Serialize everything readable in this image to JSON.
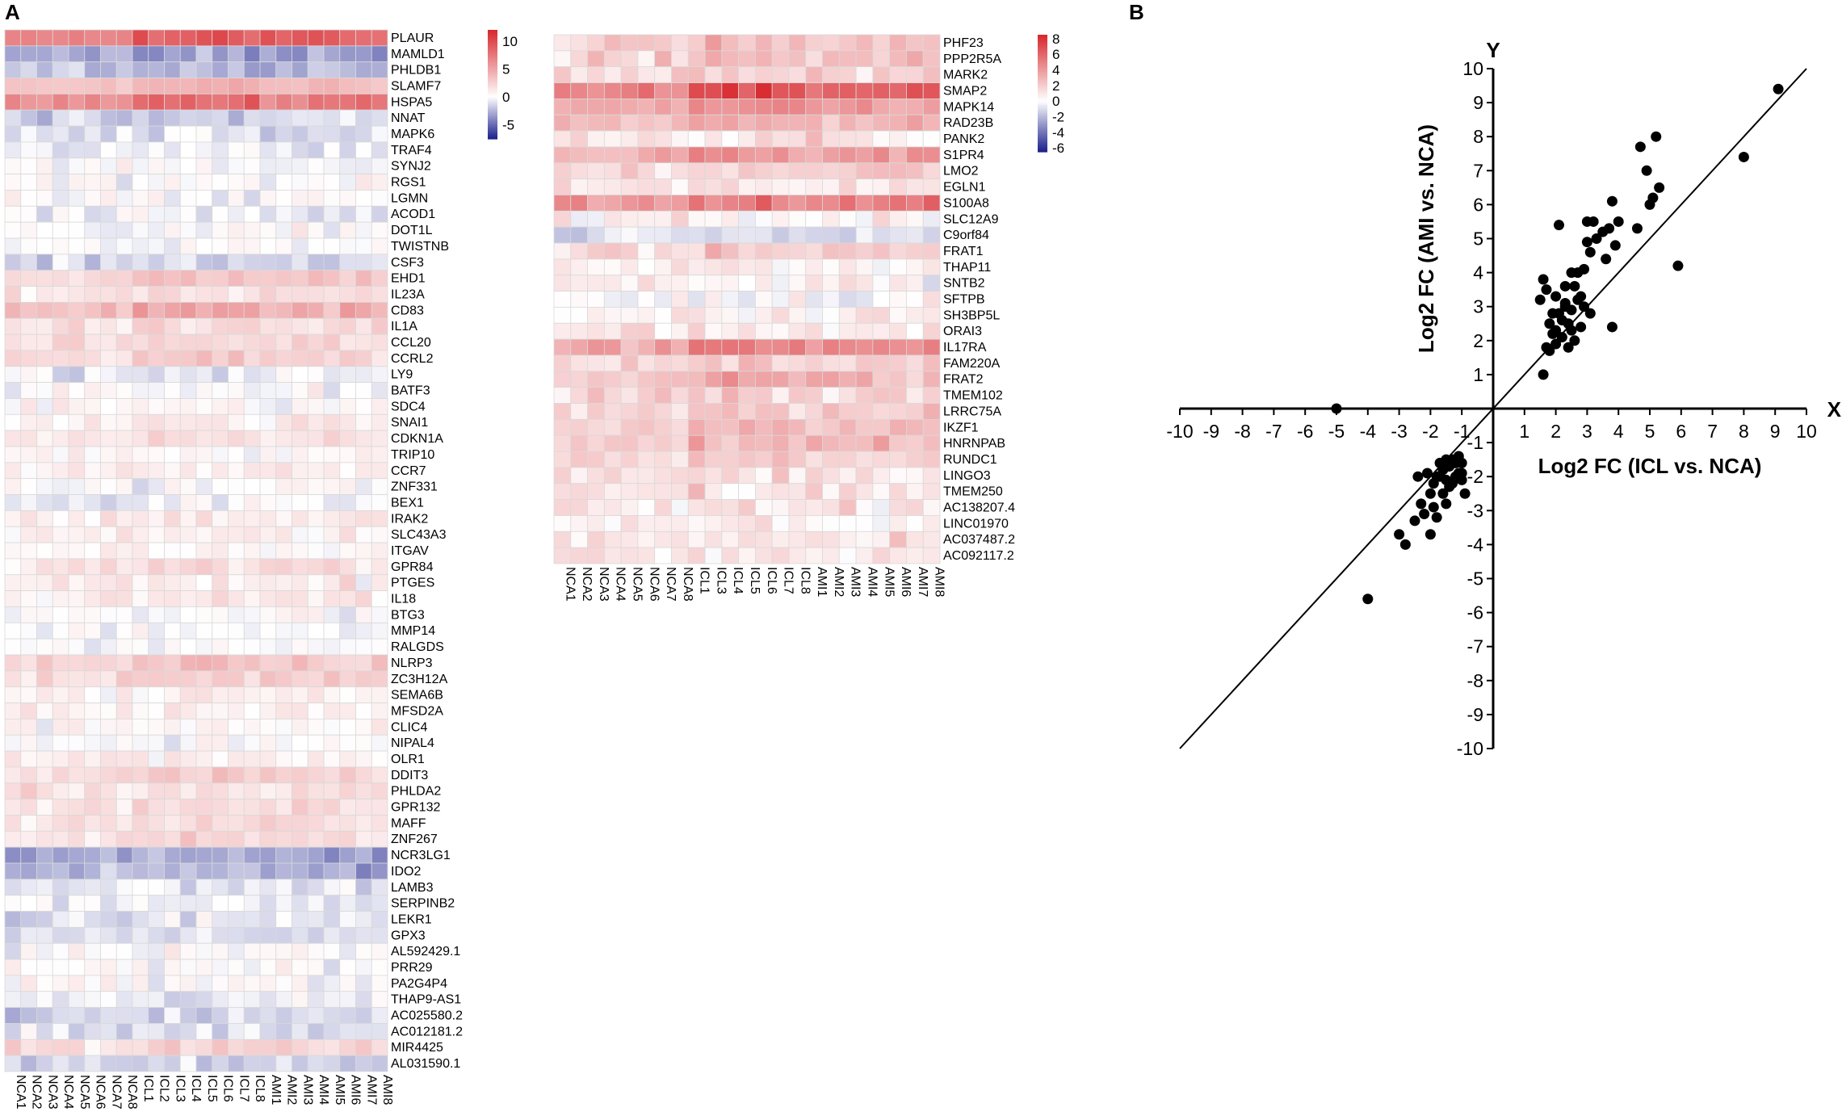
{
  "panels": {
    "a_label": "A",
    "b_label": "B"
  },
  "colors": {
    "low": "#1b1f8c",
    "mid": "#ffffff",
    "high": "#d7262b",
    "grid": "#d9d9d9",
    "text": "#000000"
  },
  "chart_data": [
    {
      "type": "heatmap",
      "title": "",
      "columns": [
        "NCA1",
        "NCA2",
        "NCA3",
        "NCA4",
        "NCA5",
        "NCA6",
        "NCA7",
        "NCA8",
        "ICL1",
        "ICL2",
        "ICL3",
        "ICL4",
        "ICL5",
        "ICL6",
        "ICL7",
        "ICL8",
        "AMI1",
        "AMI2",
        "AMI3",
        "AMI4",
        "AMI5",
        "AMI6",
        "AMI7",
        "AMI8"
      ],
      "rows": [
        "PLAUR",
        "MAMLD1",
        "PHLDB1",
        "SLAMF7",
        "HSPA5",
        "NNAT",
        "MAPK6",
        "TRAF4",
        "SYNJ2",
        "RGS1",
        "LGMN",
        "ACOD1",
        "DOT1L",
        "TWISTNB",
        "CSF3",
        "EHD1",
        "IL23A",
        "CD83",
        "IL1A",
        "CCL20",
        "CCRL2",
        "LY9",
        "BATF3",
        "SDC4",
        "SNAI1",
        "CDKN1A",
        "TRIP10",
        "CCR7",
        "ZNF331",
        "BEX1",
        "IRAK2",
        "SLC43A3",
        "ITGAV",
        "GPR84",
        "PTGES",
        "IL18",
        "BTG3",
        "MMP14",
        "RALGDS",
        "NLRP3",
        "ZC3H12A",
        "SEMA6B",
        "MFSD2A",
        "CLIC4",
        "NIPAL4",
        "OLR1",
        "DDIT3",
        "PHLDA2",
        "GPR132",
        "MAFF",
        "ZNF267",
        "NCR3LG1",
        "IDO2",
        "LAMB3",
        "SERPINB2",
        "LEKR1",
        "GPX3",
        "AL592429.1",
        "PRR29",
        "PA2G4P4",
        "THAP9-AS1",
        "AC025580.2",
        "AC012181.2",
        "MIR4425",
        "AL031590.1"
      ],
      "colorbar": {
        "ticks": [
          10,
          5,
          0,
          -5
        ],
        "range": [
          -7.5,
          12
        ]
      },
      "row_means": {
        "PLAUR": 7,
        "MAMLD1": -3,
        "PHLDB1": -2.5,
        "SLAMF7": 3,
        "HSPA5": 6,
        "NNAT": -1.5,
        "MAPK6": -1,
        "TRAF4": -0.5,
        "SYNJ2": 0,
        "RGS1": 0,
        "LGMN": 0,
        "ACOD1": -0.5,
        "DOT1L": 0,
        "TWISTNB": 0,
        "CSF3": -1.5,
        "EHD1": 2.5,
        "IL23A": 1.5,
        "CD83": 3.5,
        "IL1A": 1.5,
        "CCL20": 1.5,
        "CCRL2": 2,
        "LY9": -0.5,
        "BATF3": 0,
        "SDC4": 0.5,
        "SNAI1": 1,
        "CDKN1A": 1.5,
        "TRIP10": 0.5,
        "CCR7": 1,
        "ZNF331": 0,
        "BEX1": -0.5,
        "IRAK2": 1,
        "SLC43A3": 1,
        "ITGAV": 0.5,
        "GPR84": 1.5,
        "PTGES": 1,
        "IL18": 1,
        "BTG3": 0,
        "MMP14": 0,
        "RALGDS": 0,
        "NLRP3": 2.5,
        "ZC3H12A": 2,
        "SEMA6B": 0.5,
        "MFSD2A": 1,
        "CLIC4": 0.5,
        "NIPAL4": 0,
        "OLR1": 1,
        "DDIT3": 2,
        "PHLDA2": 1.5,
        "GPR132": 1.5,
        "MAFF": 1.5,
        "ZNF267": 1.5,
        "NCR3LG1": -3,
        "IDO2": -2.5,
        "LAMB3": -1,
        "SERPINB2": -0.5,
        "LEKR1": -1,
        "GPX3": -1,
        "AL592429.1": 0,
        "PRR29": 0,
        "PA2G4P4": 0,
        "THAP9-AS1": -0.5,
        "AC025580.2": -1.5,
        "AC012181.2": -1,
        "MIR4425": 2,
        "AL031590.1": -1.5
      }
    },
    {
      "type": "heatmap",
      "title": "",
      "columns": [
        "NCA1",
        "NCA2",
        "NCA3",
        "NCA4",
        "NCA5",
        "NCA6",
        "NCA7",
        "NCA8",
        "ICL1",
        "ICL3",
        "ICL4",
        "ICL5",
        "ICL6",
        "ICL7",
        "ICL8",
        "AMI1",
        "AMI2",
        "AMI3",
        "AMI4",
        "AMI5",
        "AMI6",
        "AMI7",
        "AMI8"
      ],
      "rows": [
        "PHF23",
        "PPP2R5A",
        "MARK2",
        "SMAP2",
        "MAPK14",
        "RAD23B",
        "PANK2",
        "S1PR4",
        "LMO2",
        "EGLN1",
        "S100A8",
        "SLC12A9",
        "C9orf84",
        "FRAT1",
        "THAP11",
        "SNTB2",
        "SFTPB",
        "SH3BP5L",
        "ORAI3",
        "IL17RA",
        "FAM220A",
        "FRAT2",
        "TMEM102",
        "LRRC75A",
        "IKZF1",
        "HNRNPAB",
        "RUNDC1",
        "LINGO3",
        "TMEM250",
        "AC138207.4",
        "LINC01970",
        "AC037487.2",
        "AC092117.2"
      ],
      "colorbar": {
        "ticks": [
          8,
          6,
          4,
          2,
          0,
          -2,
          -4,
          -6
        ],
        "range": [
          -6.5,
          8.5
        ]
      },
      "row_means": {
        "PHF23": 2,
        "PPP2R5A": 2,
        "MARK2": 1.5,
        "SMAP2": 5,
        "MAPK14": 3,
        "RAD23B": 2.5,
        "PANK2": 1,
        "S1PR4": 3,
        "LMO2": 1.5,
        "EGLN1": 1,
        "S100A8": 4,
        "SLC12A9": 0.5,
        "C9orf84": -1,
        "FRAT1": 1.5,
        "THAP11": 0.5,
        "SNTB2": 0.5,
        "SFTPB": 0,
        "SH3BP5L": 0.5,
        "ORAI3": 1,
        "IL17RA": 3.5,
        "FAM220A": 1.5,
        "FRAT2": 2.5,
        "TMEM102": 1.5,
        "LRRC75A": 1.5,
        "IKZF1": 2,
        "HNRNPAB": 2,
        "RUNDC1": 1.5,
        "LINGO3": 1,
        "TMEM250": 1,
        "AC138207.4": 1,
        "LINC01970": 0.5,
        "AC037487.2": 1,
        "AC092117.2": 1
      }
    },
    {
      "type": "scatter",
      "title": "",
      "xlabel": "Log2 FC (ICL vs. NCA)",
      "ylabel": "Log2 FC (AMI vs. NCA)",
      "x_axis_name": "X",
      "y_axis_name": "Y",
      "xlim": [
        -10,
        10
      ],
      "ylim": [
        -10,
        10
      ],
      "x_ticks": [
        -10,
        -9,
        -8,
        -7,
        -6,
        -5,
        -4,
        -3,
        -2,
        -1,
        1,
        2,
        3,
        4,
        5,
        6,
        7,
        8,
        9,
        10
      ],
      "y_ticks": [
        10,
        9,
        8,
        7,
        6,
        5,
        4,
        3,
        2,
        1,
        -1,
        -2,
        -3,
        -4,
        -5,
        -6,
        -7,
        -8,
        -9,
        -10
      ],
      "reference_line": {
        "slope": 1,
        "intercept": 0
      },
      "points": [
        [
          9.1,
          9.4
        ],
        [
          8.0,
          7.4
        ],
        [
          5.9,
          4.2
        ],
        [
          5.2,
          8.0
        ],
        [
          5.3,
          6.5
        ],
        [
          5.1,
          6.2
        ],
        [
          4.9,
          7.0
        ],
        [
          4.7,
          7.7
        ],
        [
          5.0,
          6.0
        ],
        [
          4.6,
          5.3
        ],
        [
          4.0,
          5.5
        ],
        [
          3.8,
          6.1
        ],
        [
          3.7,
          5.3
        ],
        [
          3.9,
          4.8
        ],
        [
          3.5,
          5.2
        ],
        [
          3.3,
          5.0
        ],
        [
          3.2,
          5.5
        ],
        [
          3.0,
          5.5
        ],
        [
          3.0,
          4.9
        ],
        [
          3.6,
          4.4
        ],
        [
          3.1,
          4.6
        ],
        [
          2.9,
          4.1
        ],
        [
          2.7,
          4.0
        ],
        [
          2.5,
          4.0
        ],
        [
          2.3,
          3.6
        ],
        [
          2.1,
          5.4
        ],
        [
          2.3,
          3.1
        ],
        [
          2.0,
          3.3
        ],
        [
          1.9,
          2.8
        ],
        [
          1.7,
          3.5
        ],
        [
          1.6,
          3.8
        ],
        [
          1.5,
          3.2
        ],
        [
          1.8,
          2.5
        ],
        [
          1.7,
          1.8
        ],
        [
          1.6,
          1.0
        ],
        [
          2.0,
          2.3
        ],
        [
          2.2,
          2.1
        ],
        [
          2.4,
          2.5
        ],
        [
          2.5,
          2.9
        ],
        [
          2.7,
          3.2
        ],
        [
          2.9,
          3.0
        ],
        [
          3.1,
          2.8
        ],
        [
          2.8,
          2.4
        ],
        [
          2.6,
          2.0
        ],
        [
          2.4,
          1.8
        ],
        [
          2.2,
          2.6
        ],
        [
          2.0,
          1.9
        ],
        [
          1.9,
          2.2
        ],
        [
          2.1,
          2.8
        ],
        [
          2.6,
          3.6
        ],
        [
          2.3,
          3.0
        ],
        [
          2.8,
          3.3
        ],
        [
          3.8,
          2.4
        ],
        [
          1.8,
          1.7
        ],
        [
          2.5,
          2.3
        ],
        [
          -5.0,
          0.0
        ],
        [
          -4.0,
          -5.6
        ],
        [
          -3.0,
          -3.7
        ],
        [
          -2.8,
          -4.0
        ],
        [
          -2.5,
          -3.3
        ],
        [
          -2.2,
          -3.1
        ],
        [
          -2.3,
          -2.8
        ],
        [
          -2.0,
          -3.7
        ],
        [
          -1.8,
          -3.2
        ],
        [
          -2.0,
          -2.5
        ],
        [
          -1.9,
          -2.2
        ],
        [
          -1.7,
          -2.0
        ],
        [
          -1.6,
          -1.8
        ],
        [
          -1.5,
          -2.1
        ],
        [
          -1.4,
          -1.7
        ],
        [
          -1.3,
          -1.5
        ],
        [
          -1.2,
          -1.6
        ],
        [
          -1.1,
          -1.4
        ],
        [
          -1.0,
          -1.6
        ],
        [
          -1.1,
          -1.9
        ],
        [
          -1.2,
          -2.0
        ],
        [
          -1.4,
          -2.3
        ],
        [
          -1.6,
          -2.5
        ],
        [
          -1.8,
          -2.0
        ],
        [
          -1.5,
          -2.8
        ],
        [
          -1.3,
          -2.2
        ],
        [
          -1.0,
          -2.1
        ],
        [
          -0.9,
          -2.5
        ],
        [
          -1.7,
          -1.6
        ],
        [
          -2.1,
          -1.9
        ],
        [
          -1.0,
          -1.9
        ],
        [
          -1.5,
          -1.5
        ],
        [
          -1.9,
          -2.9
        ],
        [
          -2.4,
          -2.0
        ]
      ]
    }
  ]
}
